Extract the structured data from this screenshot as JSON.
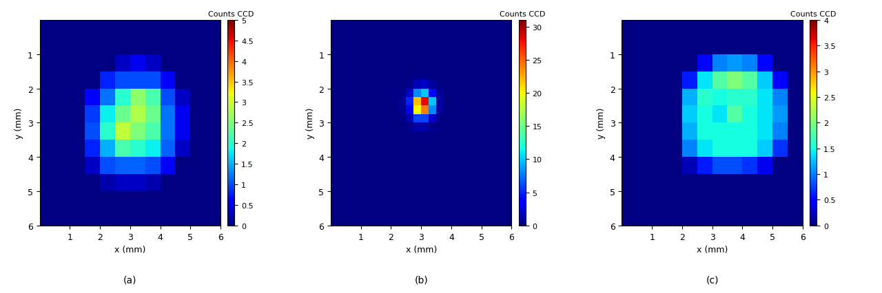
{
  "chart_data": [
    {
      "type": "heatmap",
      "title": "(a)",
      "xlabel": "x (mm)",
      "ylabel": "y (mm)",
      "color": "jet",
      "xlim": [
        0,
        6
      ],
      "ylim": [
        6,
        0
      ],
      "xticks": [
        1,
        2,
        3,
        4,
        5,
        6
      ],
      "yticks": [
        1,
        2,
        3,
        4,
        5,
        6
      ],
      "x_edges": [
        0,
        0.5,
        1,
        1.5,
        2,
        2.5,
        3,
        3.5,
        4,
        4.5,
        5,
        5.5,
        6
      ],
      "y_edges": [
        0,
        0.5,
        1,
        1.5,
        2,
        2.5,
        3,
        3.5,
        4,
        4.5,
        5,
        5.5,
        6
      ],
      "cells": [
        [
          0,
          0,
          0,
          0,
          0,
          0,
          0,
          0,
          0,
          0,
          0,
          0
        ],
        [
          0,
          0,
          0,
          0,
          0,
          0,
          0,
          0,
          0,
          0,
          0,
          0
        ],
        [
          0,
          0,
          0,
          0,
          0,
          0.3,
          0.5,
          0.3,
          0,
          0,
          0,
          0
        ],
        [
          0,
          0,
          0,
          0,
          0.8,
          1.0,
          1.0,
          1.0,
          0.6,
          0,
          0,
          0
        ],
        [
          0,
          0,
          0,
          0.6,
          1.2,
          2.0,
          2.6,
          2.2,
          1.0,
          0.3,
          0,
          0
        ],
        [
          0,
          0,
          0,
          0.9,
          1.8,
          2.4,
          2.8,
          2.4,
          1.2,
          0.5,
          0,
          0
        ],
        [
          0,
          0,
          0,
          1.0,
          2.0,
          2.9,
          2.5,
          2.2,
          1.2,
          0.5,
          0,
          0
        ],
        [
          0,
          0,
          0,
          0.8,
          1.5,
          2.2,
          2.0,
          1.8,
          1.1,
          0.3,
          0,
          0
        ],
        [
          0,
          0,
          0,
          0.3,
          1.0,
          1.1,
          1.1,
          1.0,
          0.6,
          0,
          0,
          0
        ],
        [
          0,
          0,
          0,
          0,
          0.2,
          0.3,
          0.3,
          0.2,
          0,
          0,
          0,
          0
        ],
        [
          0,
          0,
          0,
          0,
          0,
          0,
          0,
          0,
          0,
          0,
          0,
          0
        ],
        [
          0,
          0,
          0,
          0,
          0,
          0,
          0,
          0,
          0,
          0,
          0,
          0
        ]
      ],
      "colorbar_label": "Counts CCD",
      "colorbar_range": [
        0,
        5
      ],
      "colorbar_ticks": [
        0,
        0.5,
        1,
        1.5,
        2,
        2.5,
        3,
        3.5,
        4,
        4.5,
        5
      ]
    },
    {
      "type": "heatmap",
      "title": "(b)",
      "xlabel": "x (mm)",
      "ylabel": "y (mm)",
      "color": "jet",
      "xlim": [
        0,
        6
      ],
      "ylim": [
        6,
        0
      ],
      "xticks": [
        1,
        2,
        3,
        4,
        5,
        6
      ],
      "yticks": [
        1,
        2,
        3,
        4,
        5,
        6
      ],
      "x_edges": [
        2,
        2.25,
        2.5,
        2.75,
        3,
        3.25,
        3.5,
        3.75,
        4
      ],
      "y_edges": [
        1.5,
        1.75,
        2,
        2.25,
        2.5,
        2.75,
        3,
        3.25,
        3.5
      ],
      "cells": [
        [
          0,
          0,
          0,
          0.3,
          0.4,
          0,
          0,
          0
        ],
        [
          0,
          0,
          0.3,
          1.5,
          2,
          0.8,
          0,
          0
        ],
        [
          0,
          0.3,
          2,
          8,
          10,
          4,
          0.5,
          0
        ],
        [
          0,
          0.5,
          5,
          22,
          28,
          10,
          1,
          0
        ],
        [
          0,
          0.5,
          4,
          20,
          24,
          8,
          0.8,
          0
        ],
        [
          0,
          0.2,
          1.5,
          6,
          6,
          2,
          0.3,
          0
        ],
        [
          0,
          0,
          0.3,
          1,
          1,
          0.4,
          0,
          0
        ],
        [
          0,
          0,
          0,
          0.2,
          0.2,
          0,
          0,
          0
        ]
      ],
      "colorbar_label": "Counts CCD",
      "colorbar_range": [
        0,
        31
      ],
      "colorbar_ticks": [
        0,
        5,
        10,
        15,
        20,
        25,
        30
      ]
    },
    {
      "type": "heatmap",
      "title": "(c)",
      "xlabel": "x (mm)",
      "ylabel": "y (mm)",
      "color": "jet",
      "xlim": [
        0,
        6
      ],
      "ylim": [
        6,
        0
      ],
      "xticks": [
        1,
        2,
        3,
        4,
        5,
        6
      ],
      "yticks": [
        1,
        2,
        3,
        4,
        5,
        6
      ],
      "x_edges": [
        0,
        0.5,
        1,
        1.5,
        2,
        2.5,
        3,
        3.5,
        4,
        4.5,
        5,
        5.5,
        6
      ],
      "y_edges": [
        0,
        0.5,
        1,
        1.5,
        2,
        2.5,
        3,
        3.5,
        4,
        4.5,
        5,
        5.5,
        6
      ],
      "cells": [
        [
          0,
          0,
          0,
          0,
          0,
          0,
          0,
          0,
          0,
          0,
          0,
          0
        ],
        [
          0,
          0,
          0,
          0,
          0,
          0,
          0,
          0,
          0,
          0,
          0,
          0
        ],
        [
          0,
          0,
          0,
          0,
          0,
          0.5,
          1.0,
          1.1,
          1.0,
          0.5,
          0,
          0
        ],
        [
          0,
          0,
          0,
          0,
          0.6,
          1.4,
          1.8,
          2.0,
          1.8,
          1.3,
          0.5,
          0
        ],
        [
          0,
          0,
          0,
          0,
          1.2,
          1.6,
          1.5,
          1.6,
          1.6,
          1.4,
          1.0,
          0
        ],
        [
          0,
          0,
          0,
          0,
          1.3,
          1.5,
          1.4,
          1.8,
          1.5,
          1.4,
          1.1,
          0
        ],
        [
          0,
          0,
          0,
          0,
          1.2,
          1.5,
          1.5,
          1.5,
          1.5,
          1.4,
          1.0,
          0
        ],
        [
          0,
          0,
          0,
          0,
          1.0,
          1.4,
          1.5,
          1.5,
          1.5,
          1.3,
          0.7,
          0
        ],
        [
          0,
          0,
          0,
          0,
          0.2,
          0.6,
          0.8,
          0.8,
          0.7,
          0.4,
          0,
          0
        ],
        [
          0,
          0,
          0,
          0,
          0,
          0,
          0,
          0,
          0,
          0,
          0,
          0
        ],
        [
          0,
          0,
          0,
          0,
          0,
          0,
          0,
          0,
          0,
          0,
          0,
          0
        ],
        [
          0,
          0,
          0,
          0,
          0,
          0,
          0,
          0,
          0,
          0,
          0,
          0
        ]
      ],
      "colorbar_label": "Counts CCD",
      "colorbar_range": [
        0,
        4
      ],
      "colorbar_ticks": [
        0,
        0.5,
        1,
        1.5,
        2,
        2.5,
        3,
        3.5,
        4
      ]
    }
  ]
}
